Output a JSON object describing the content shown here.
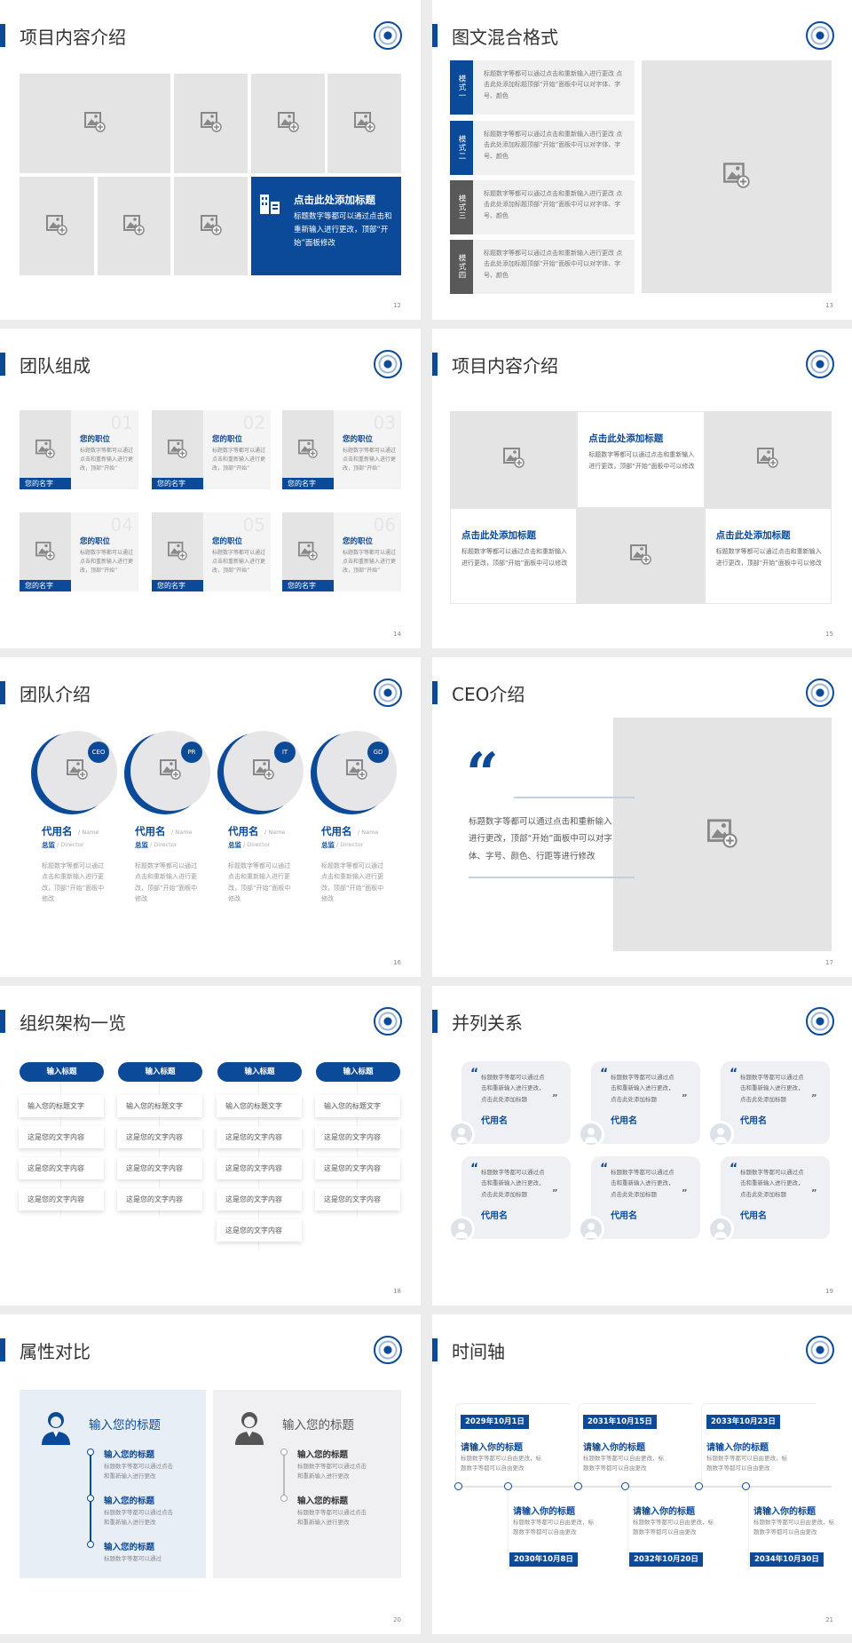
{
  "colors": {
    "accent": "#0b4a99",
    "placeholder": "#e4e4e4",
    "dark_label": "#595959",
    "page_bg": "#ececec"
  },
  "slides": [
    {
      "page": "12",
      "title": "项目内容介绍",
      "feature": {
        "icon": "building-icon",
        "title": "点击此处添加标题",
        "body": "标题数字等都可以通过点击和重新输入进行更改，顶部“开始”面板修改"
      }
    },
    {
      "page": "13",
      "title": "图文混合格式",
      "items": [
        {
          "label": "模式一",
          "text": "标题数字等都可以通过点击和重新输入进行更改 点击此处添加标题顶部“开始”面板中可以对字体、字号、颜色"
        },
        {
          "label": "模式二",
          "text": "标题数字等都可以通过点击和重新输入进行更改 点击此处添加标题顶部“开始”面板中可以对字体、字号、颜色"
        },
        {
          "label": "模式三",
          "text": "标题数字等都可以通过点击和重新输入进行更改 点击此处添加标题顶部“开始”面板中可以对字体、字号、颜色"
        },
        {
          "label": "模式四",
          "text": "标题数字等都可以通过点击和重新输入进行更改 点击此处添加标题顶部“开始”面板中可以对字体、字号、颜色"
        }
      ]
    },
    {
      "page": "14",
      "title": "团队组成",
      "members": [
        {
          "num": "01",
          "role": "您的职位",
          "desc": "标题数字等都可以通过点击和重新输入进行更改，顶部“开始”",
          "name": "您的名字"
        },
        {
          "num": "02",
          "role": "您的职位",
          "desc": "标题数字等都可以通过点击和重新输入进行更改，顶部“开始”",
          "name": "您的名字"
        },
        {
          "num": "03",
          "role": "您的职位",
          "desc": "标题数字等都可以通过点击和重新输入进行更改，顶部“开始”",
          "name": "您的名字"
        },
        {
          "num": "04",
          "role": "您的职位",
          "desc": "标题数字等都可以通过点击和重新输入进行更改，顶部“开始”",
          "name": "您的名字"
        },
        {
          "num": "05",
          "role": "您的职位",
          "desc": "标题数字等都可以通过点击和重新输入进行更改，顶部“开始”",
          "name": "您的名字"
        },
        {
          "num": "06",
          "role": "您的职位",
          "desc": "标题数字等都可以通过点击和重新输入进行更改，顶部“开始”",
          "name": "您的名字"
        }
      ]
    },
    {
      "page": "15",
      "title": "项目内容介绍",
      "cells": [
        {
          "title": "点击此处添加标题",
          "body": "标题数字等都可以通过点击和重新输入进行更改，顶部“开始”面板中可以修改"
        },
        {
          "title": "点击此处添加标题",
          "body": "标题数字等都可以通过点击和重新输入进行更改，顶部“开始”面板中可以修改"
        },
        {
          "title": "点击此处添加标题",
          "body": "标题数字等都可以通过点击和重新输入进行更改，顶部“开始”面板中可以修改"
        }
      ]
    },
    {
      "page": "16",
      "title": "团队介绍",
      "members": [
        {
          "badge": "CEO",
          "name": "代用名",
          "name_en": "/ Name",
          "role": "总监",
          "role_en": "/ Director",
          "desc": "标题数字等都可以通过点击和重新输入进行更改，顶部“开始”面板中修改"
        },
        {
          "badge": "PR",
          "name": "代用名",
          "name_en": "/ Name",
          "role": "总监",
          "role_en": "/ Director",
          "desc": "标题数字等都可以通过点击和重新输入进行更改，顶部“开始”面板中修改"
        },
        {
          "badge": "IT",
          "name": "代用名",
          "name_en": "/ Name",
          "role": "总监",
          "role_en": "/ Director",
          "desc": "标题数字等都可以通过点击和重新输入进行更改，顶部“开始”面板中修改"
        },
        {
          "badge": "GD",
          "name": "代用名",
          "name_en": "/ Name",
          "role": "总监",
          "role_en": "/ Director",
          "desc": "标题数字等都可以通过点击和重新输入进行更改，顶部“开始”面板中修改"
        }
      ]
    },
    {
      "page": "17",
      "title": "CEO介绍",
      "quote_mark": "“",
      "text": "标题数字等都可以通过点击和重新输入进行更改，顶部“开始”面板中可以对字体、字号、颜色、行距等进行修改"
    },
    {
      "page": "18",
      "title": "组织架构一览",
      "columns": [
        {
          "header": "输入标题",
          "items": [
            "输入您的标题文字",
            "这是您的文字内容",
            "这是您的文字内容",
            "这是您的文字内容"
          ]
        },
        {
          "header": "输入标题",
          "items": [
            "输入您的标题文字",
            "这是您的文字内容",
            "这是您的文字内容",
            "这是您的文字内容"
          ]
        },
        {
          "header": "输入标题",
          "items": [
            "输入您的标题文字",
            "这是您的文字内容",
            "这是您的文字内容",
            "这是您的文字内容",
            "这是您的文字内容"
          ]
        },
        {
          "header": "输入标题",
          "items": [
            "输入您的标题文字",
            "这是您的文字内容",
            "这是您的文字内容",
            "这是您的文字内容"
          ]
        }
      ]
    },
    {
      "page": "19",
      "title": "并列关系",
      "cards": [
        {
          "text": "标题数字等都可以通过点击和重新输入进行更改，点击此处添加标题",
          "name": "代用名"
        },
        {
          "text": "标题数字等都可以通过点击和重新输入进行更改，点击此处添加标题",
          "name": "代用名"
        },
        {
          "text": "标题数字等都可以通过点击和重新输入进行更改，点击此处添加标题",
          "name": "代用名"
        },
        {
          "text": "标题数字等都可以通过点击和重新输入进行更改，点击此处添加标题",
          "name": "代用名"
        },
        {
          "text": "标题数字等都可以通过点击和重新输入进行更改，点击此处添加标题",
          "name": "代用名"
        },
        {
          "text": "标题数字等都可以通过点击和重新输入进行更改，点击此处添加标题",
          "name": "代用名"
        }
      ]
    },
    {
      "page": "20",
      "title": "属性对比",
      "panels": [
        {
          "icon": "female-user-icon",
          "heading": "输入您的标题",
          "items": [
            {
              "title": "输入您的标题",
              "desc": "标题数字等都可以通过点击和重新输入进行更改"
            },
            {
              "title": "输入您的标题",
              "desc": "标题数字等都可以通过点击和重新输入进行更改"
            },
            {
              "title": "输入您的标题",
              "desc": "标题数字等都可以通过"
            }
          ]
        },
        {
          "icon": "male-user-icon",
          "heading": "输入您的标题",
          "items": [
            {
              "title": "输入您的标题",
              "desc": "标题数字等都可以通过点击和重新输入进行更改"
            },
            {
              "title": "输入您的标题",
              "desc": "标题数字等都可以通过点击和重新输入进行更改"
            }
          ]
        }
      ]
    },
    {
      "page": "21",
      "title": "时间轴",
      "events": [
        {
          "date": "2029年10月1日",
          "title": "请输入你的标题",
          "desc": "标题数字等都可以自由更改，标题数字等都可以自由更改"
        },
        {
          "date": "2030年10月8日",
          "title": "请输入你的标题",
          "desc": "标题数字等都可以自由更改，标题数字等都可以自由更改"
        },
        {
          "date": "2031年10月15日",
          "title": "请输入你的标题",
          "desc": "标题数字等都可以自由更改，标题数字等都可以自由更改"
        },
        {
          "date": "2032年10月20日",
          "title": "请输入你的标题",
          "desc": "标题数字等都可以自由更改，标题数字等都可以自由更改"
        },
        {
          "date": "2033年10月23日",
          "title": "请输入你的标题",
          "desc": "标题数字等都可以自由更改，标题数字等都可以自由更改"
        },
        {
          "date": "2034年10月30日",
          "title": "请输入你的标题",
          "desc": "标题数字等都可以自由更改，标题数字等都可以自由更改"
        }
      ]
    }
  ]
}
